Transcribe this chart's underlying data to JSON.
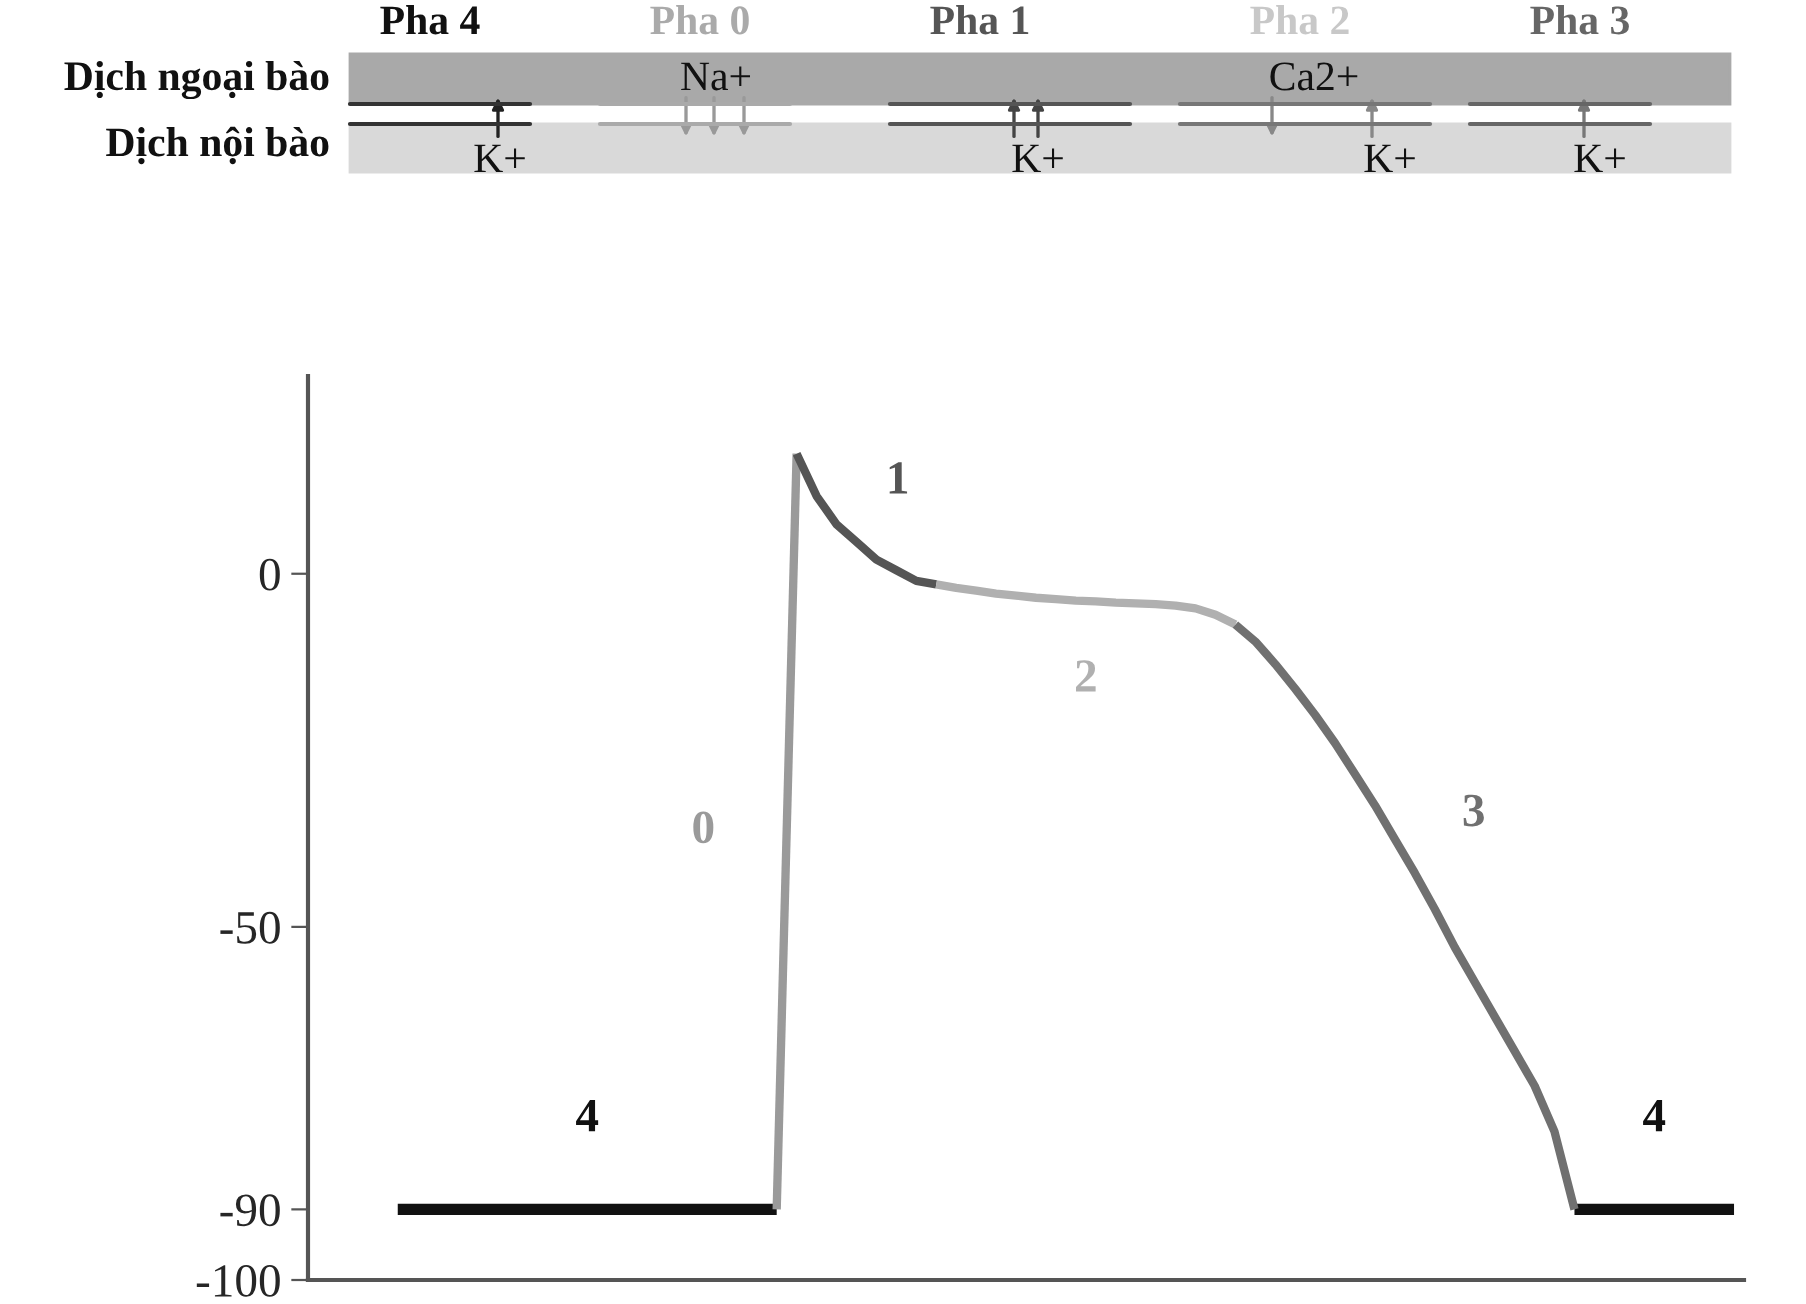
{
  "chart_data": {
    "type": "line",
    "categories": [
      null,
      null,
      null,
      null,
      null,
      null,
      null,
      null,
      null,
      null,
      null,
      null,
      null,
      null,
      null,
      null,
      null,
      null,
      null,
      null,
      null,
      null,
      null,
      null,
      null,
      null,
      null,
      null,
      null,
      null,
      null,
      null,
      null,
      null,
      null,
      null,
      null,
      null,
      null,
      null,
      null,
      null,
      null,
      null,
      null,
      null,
      null,
      null,
      null,
      null,
      null,
      null,
      null,
      null,
      null,
      null,
      null,
      null,
      null,
      null,
      null,
      null,
      null,
      null,
      null,
      null,
      null,
      null,
      null,
      null,
      null,
      null
    ],
    "series": [
      {
        "name": "4",
        "color": "#111111",
        "values": [
          null,
          null,
          null,
          null,
          -90,
          -90,
          -90,
          -90,
          -90,
          -90,
          -90,
          -90,
          -90,
          -90,
          -90,
          -90,
          -90,
          -90,
          -90,
          -90,
          -90,
          -90,
          -90,
          -90,
          null,
          null,
          null,
          null,
          null,
          null,
          null,
          null,
          null,
          null,
          null,
          null,
          null,
          null,
          null,
          null,
          null,
          null,
          null,
          null,
          null,
          null,
          null,
          null,
          null,
          null,
          null,
          null,
          null,
          null,
          null,
          null,
          null,
          null,
          null,
          null,
          null,
          null,
          null,
          -90,
          -90,
          -90,
          -90,
          -90,
          -90,
          -90,
          -90,
          -90
        ]
      },
      {
        "name": "0",
        "color": "#9a9a9a",
        "values": [
          null,
          null,
          null,
          null,
          null,
          null,
          null,
          null,
          null,
          null,
          null,
          null,
          null,
          null,
          null,
          null,
          null,
          null,
          null,
          null,
          null,
          null,
          null,
          -90,
          17,
          null,
          null,
          null,
          null,
          null,
          null,
          null,
          null,
          null,
          null,
          null,
          null,
          null,
          null,
          null,
          null,
          null,
          null,
          null,
          null,
          null,
          null,
          null,
          null,
          null,
          null,
          null,
          null,
          null,
          null,
          null,
          null,
          null,
          null,
          null,
          null,
          null,
          null,
          null,
          null,
          null,
          null,
          null,
          null,
          null,
          null,
          null
        ]
      },
      {
        "name": "1",
        "color": "#555555",
        "values": [
          null,
          null,
          null,
          null,
          null,
          null,
          null,
          null,
          null,
          null,
          null,
          null,
          null,
          null,
          null,
          null,
          null,
          null,
          null,
          null,
          null,
          null,
          null,
          null,
          17,
          11,
          7,
          4.5,
          2,
          0.5,
          -1,
          -1.5,
          null,
          null,
          null,
          null,
          null,
          null,
          null,
          null,
          null,
          null,
          null,
          null,
          null,
          null,
          null,
          null,
          null,
          null,
          null,
          null,
          null,
          null,
          null,
          null,
          null,
          null,
          null,
          null,
          null,
          null,
          null,
          null,
          null,
          null,
          null,
          null,
          null,
          null,
          null,
          null
        ]
      },
      {
        "name": "2",
        "color": "#b0b0b0",
        "values": [
          null,
          null,
          null,
          null,
          null,
          null,
          null,
          null,
          null,
          null,
          null,
          null,
          null,
          null,
          null,
          null,
          null,
          null,
          null,
          null,
          null,
          null,
          null,
          null,
          null,
          null,
          null,
          null,
          null,
          null,
          null,
          -1.5,
          -2,
          -2.4,
          -2.8,
          -3.1,
          -3.4,
          -3.6,
          -3.8,
          -3.9,
          -4.1,
          -4.2,
          -4.3,
          -4.5,
          -4.9,
          -5.8,
          -7.2,
          null,
          null,
          null,
          null,
          null,
          null,
          null,
          null,
          null,
          null,
          null,
          null,
          null,
          null,
          null,
          null,
          null,
          null,
          null,
          null,
          null,
          null,
          null,
          null,
          null
        ]
      },
      {
        "name": "3",
        "color": "#707070",
        "values": [
          null,
          null,
          null,
          null,
          null,
          null,
          null,
          null,
          null,
          null,
          null,
          null,
          null,
          null,
          null,
          null,
          null,
          null,
          null,
          null,
          null,
          null,
          null,
          null,
          null,
          null,
          null,
          null,
          null,
          null,
          null,
          null,
          null,
          null,
          null,
          null,
          null,
          null,
          null,
          null,
          null,
          null,
          null,
          null,
          null,
          null,
          -7.2,
          -9.6,
          -12.8,
          -16.3,
          -20,
          -24,
          -28.4,
          -32.8,
          -37.6,
          -42.4,
          -47.5,
          -52.9,
          -57.8,
          -62.7,
          -67.6,
          -72.5,
          -79,
          -90,
          null,
          null,
          null,
          null,
          null,
          null,
          null,
          null
        ]
      }
    ],
    "ylim": [
      -100,
      28
    ],
    "yticks": [
      -100,
      -90,
      -50,
      0
    ],
    "tick_labels": "y",
    "grid": false,
    "legend": false,
    "annotations": [
      "Pha 4",
      "Pha 0",
      "Pha 1",
      "Pha 2",
      "Pha 3",
      "Dịch ngoại bào",
      "Dịch nội bào",
      "Na+",
      "Ca2+",
      "K+",
      "K+",
      "K+",
      "K+"
    ]
  }
}
